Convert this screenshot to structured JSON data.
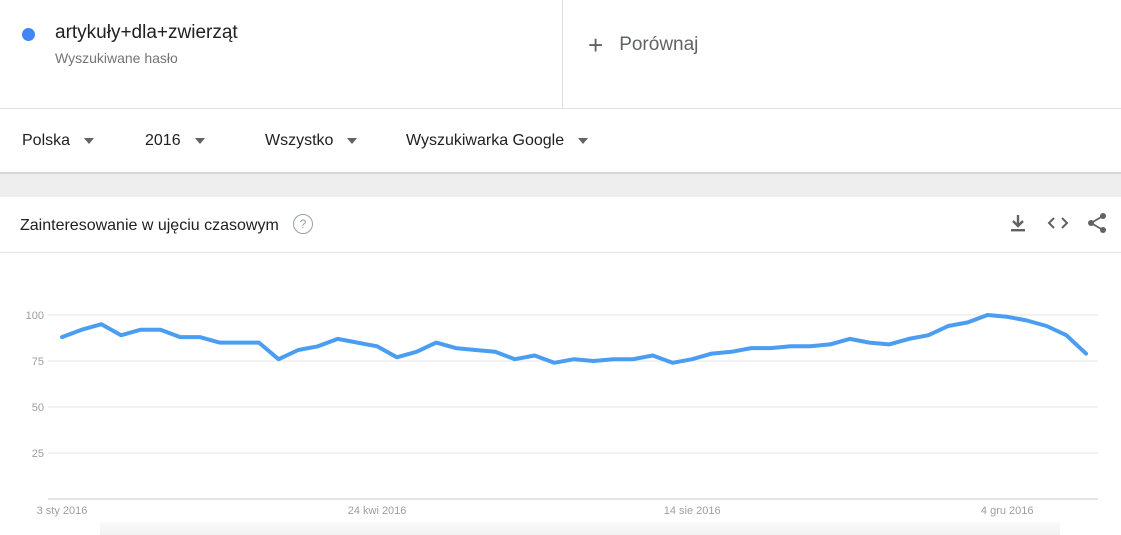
{
  "term": {
    "name": "artykuły+dla+zwierząt",
    "subtitle": "Wyszukiwane hasło",
    "color": "#4285f4"
  },
  "compare": {
    "label": "Porównaj"
  },
  "filters": {
    "region": "Polska",
    "period": "2016",
    "category": "Wszystko",
    "source": "Wyszukiwarka Google"
  },
  "card": {
    "title": "Zainteresowanie w ujęciu czasowym",
    "icons": [
      "download-icon",
      "embed-icon",
      "share-icon"
    ]
  },
  "chart_data": {
    "type": "line",
    "title": "",
    "xlabel": "",
    "ylabel": "",
    "ylim": [
      0,
      100
    ],
    "yticks": [
      100,
      75,
      50,
      25
    ],
    "xtick_labels": [
      "3 sty 2016",
      "24 kwi 2016",
      "14 sie 2016",
      "4 gru 2016"
    ],
    "xtick_index": [
      0,
      16,
      32,
      48
    ],
    "grid": true,
    "series": [
      {
        "color": "#4a9df0",
        "values": [
          88,
          92,
          95,
          89,
          92,
          92,
          88,
          88,
          85,
          85,
          85,
          76,
          81,
          83,
          87,
          85,
          83,
          77,
          80,
          85,
          82,
          81,
          80,
          76,
          78,
          74,
          76,
          75,
          76,
          76,
          78,
          74,
          76,
          79,
          80,
          82,
          82,
          83,
          83,
          84,
          87,
          85,
          84,
          87,
          89,
          94,
          96,
          100,
          99,
          97,
          94,
          89,
          79
        ]
      }
    ]
  }
}
